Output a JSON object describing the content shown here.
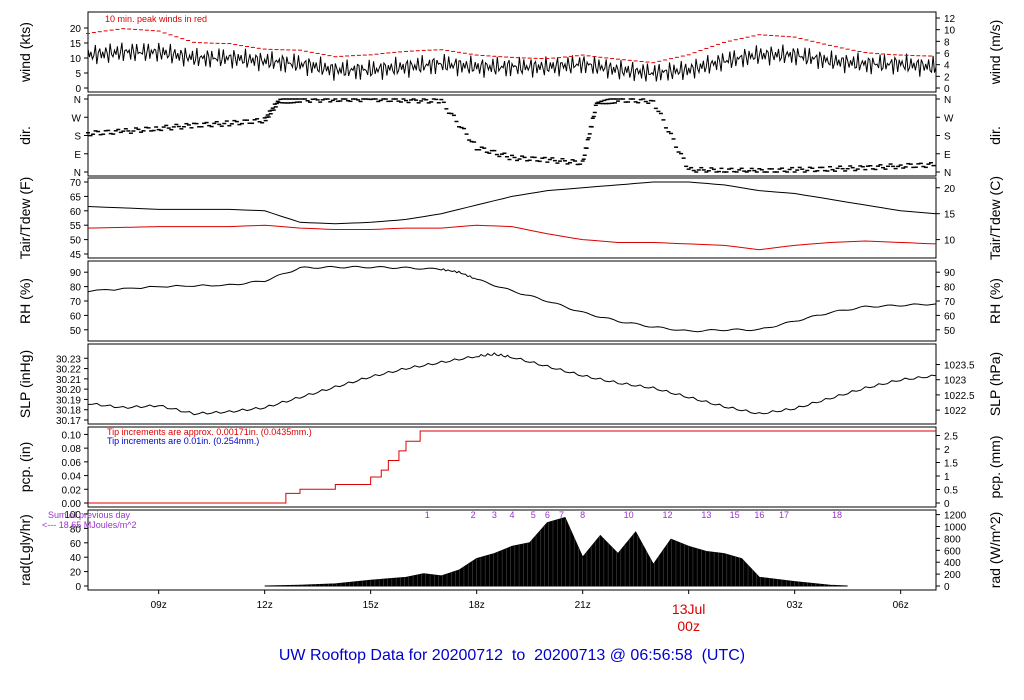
{
  "chart_data": {
    "type": "line",
    "footer_title": "UW Rooftop Data for 20200712  to  20200713 @ 06:56:58  (UTC)",
    "x_axis": {
      "ticks": [
        "09z",
        "12z",
        "15z",
        "18z",
        "21z",
        "03z",
        "06z"
      ],
      "date_label": {
        "day": "13Jul",
        "hour": "00z"
      },
      "range_hours": [
        7.0,
        31.0
      ]
    },
    "panels": [
      {
        "id": "wind",
        "ylabel_left": "wind (kts)",
        "ylabel_right": "wind (m/s)",
        "ylim": [
          0,
          24
        ],
        "left_ticks": [
          0,
          5,
          10,
          15,
          20
        ],
        "right_ticks": [
          "0",
          "2",
          "4",
          "6",
          "8",
          "10",
          "12"
        ],
        "annotation": "10 min. peak winds in red",
        "series": [
          {
            "color": "#000000",
            "x": [
              7,
              8,
              9,
              10,
              11,
              12,
              13,
              14,
              15,
              16,
              17,
              18,
              19,
              20,
              21,
              22,
              23,
              24,
              25,
              26,
              27,
              28,
              29,
              30,
              31
            ],
            "y": [
              11,
              12,
              12,
              10,
              10,
              9,
              8,
              6,
              6,
              7,
              8,
              7,
              7,
              7,
              8,
              6,
              5,
              6,
              9,
              11,
              11,
              9,
              8,
              8,
              7
            ]
          },
          {
            "color": "#dd0000",
            "x": [
              7,
              8,
              9,
              10,
              11,
              12,
              13,
              14,
              15,
              16,
              17,
              18,
              19,
              20,
              21,
              22,
              23,
              24,
              25,
              26,
              27,
              28,
              29,
              30,
              31
            ],
            "y": [
              17,
              19,
              19,
              16,
              16,
              14,
              13,
              10,
              10,
              11,
              12,
              11,
              11,
              11,
              12,
              10,
              8,
              10,
              14,
              17,
              17,
              15,
              13,
              12,
              11
            ]
          }
        ]
      },
      {
        "id": "dir",
        "ylabel_left": "dir.",
        "ylabel_right": "dir.",
        "ylim": [
          0,
          360
        ],
        "left_ticks": [
          "N",
          "E",
          "S",
          "W",
          "N"
        ],
        "right_ticks": [
          "N",
          "E",
          "S",
          "W",
          "N"
        ],
        "series": [
          {
            "color": "#000000",
            "x": [
              7,
              8,
              9,
              10,
              11,
              12,
              12.4,
              13,
              14,
              15,
              16,
              17,
              18,
              19,
              20,
              21,
              21.4,
              22,
              23,
              24,
              25,
              26,
              27,
              28,
              29,
              30,
              31
            ],
            "y": [
              190,
              200,
              215,
              230,
              240,
              255,
              350,
              355,
              358,
              360,
              355,
              350,
              120,
              70,
              60,
              45,
              340,
              355,
              350,
              10,
              8,
              5,
              10,
              15,
              20,
              30,
              35
            ]
          }
        ]
      },
      {
        "id": "temp",
        "ylabel_left": "Tair/Tdew (F)",
        "ylabel_right": "Tair/Tdew (C)",
        "ylim": [
          45,
          70
        ],
        "left_ticks": [
          45,
          50,
          55,
          60,
          65,
          70
        ],
        "right_ticks": [
          "10",
          "15",
          "20"
        ],
        "series": [
          {
            "name": "Tair",
            "color": "#000000",
            "x": [
              7,
              9,
              11,
              12,
              13,
              14,
              15,
              16,
              17,
              18,
              19,
              20,
              21,
              22,
              23,
              24,
              25,
              26,
              27,
              28,
              29,
              30,
              31
            ],
            "y": [
              61.5,
              60.5,
              60.5,
              60,
              56,
              55.5,
              56,
              57,
              59,
              62,
              65,
              67,
              68,
              69,
              70,
              70,
              69,
              67,
              66,
              64,
              62,
              60,
              59
            ]
          },
          {
            "name": "Tdew",
            "color": "#dd0000",
            "x": [
              7,
              9,
              11,
              12,
              13,
              14,
              15,
              16,
              17,
              18,
              19,
              20,
              21,
              22,
              23,
              24,
              25,
              26,
              27,
              28,
              29,
              30,
              31
            ],
            "y": [
              54,
              54.5,
              54.5,
              55,
              54,
              53.5,
              53.5,
              54,
              54,
              55,
              54.5,
              52,
              50,
              49,
              49,
              48.5,
              48,
              46.5,
              48,
              49,
              49.5,
              49,
              48.5
            ]
          }
        ]
      },
      {
        "id": "rh",
        "ylabel_left": "RH (%)",
        "ylabel_right": "RH (%)",
        "ylim": [
          45,
          95
        ],
        "left_ticks": [
          50,
          60,
          70,
          80,
          90
        ],
        "right_ticks": [
          "50",
          "60",
          "70",
          "80",
          "90"
        ],
        "series": [
          {
            "color": "#000000",
            "x": [
              7,
              9,
              11,
              12,
              13,
              14,
              15,
              16,
              17,
              17.5,
              18,
              19,
              20,
              21,
              22,
              23,
              24,
              25,
              26,
              27,
              28,
              29,
              30,
              31
            ],
            "y": [
              77,
              80,
              81,
              84,
              93,
              93.5,
              93.5,
              93,
              92,
              90,
              85,
              77,
              70,
              62,
              56,
              52,
              49,
              50,
              50,
              56,
              62,
              66,
              67,
              68
            ]
          }
        ]
      },
      {
        "id": "slp",
        "ylabel_left": "SLP (inHg)",
        "ylabel_right": "SLP (hPa)",
        "ylim": [
          30.17,
          30.24
        ],
        "left_ticks": [
          "30.17",
          "30.18",
          "30.19",
          "30.20",
          "30.21",
          "30.22",
          "30.23"
        ],
        "right_ticks": [
          "1022",
          "1022.5",
          "1023",
          "1023.5"
        ],
        "series": [
          {
            "color": "#000000",
            "x": [
              7,
              8,
              9,
              10,
              11,
              12,
              13,
              14,
              15,
              16,
              17,
              18,
              18.5,
              19,
              20,
              21,
              22,
              23,
              24,
              25,
              26,
              27,
              28,
              29,
              30,
              31
            ],
            "y": [
              30.186,
              30.182,
              30.184,
              30.176,
              30.178,
              30.182,
              30.192,
              30.202,
              30.212,
              30.22,
              30.226,
              30.232,
              30.234,
              30.231,
              30.222,
              30.213,
              30.206,
              30.201,
              30.192,
              30.183,
              30.176,
              30.181,
              30.191,
              30.201,
              30.209,
              30.213
            ]
          }
        ]
      },
      {
        "id": "pcp",
        "ylabel_left": "pcp. (in)",
        "ylabel_right": "pcp. (mm)",
        "ylim": [
          0,
          0.105
        ],
        "left_ticks": [
          "0.00",
          "0.02",
          "0.04",
          "0.06",
          "0.08",
          "0.10"
        ],
        "right_ticks": [
          "0",
          "0.5",
          "1",
          "1.5",
          "2",
          "2.5"
        ],
        "annotations": [
          {
            "text": "Tip increments are approx. 0.00171in. (0.0435mm.)",
            "color": "#dd0000"
          },
          {
            "text": "Tip increments are 0.01in. (0.254mm.)",
            "color": "#0000cc"
          }
        ],
        "series": [
          {
            "color": "#dd0000",
            "step": true,
            "x": [
              7,
              12.4,
              12.6,
              13,
              14,
              15,
              15.3,
              15.5,
              15.8,
              16,
              16.4,
              31
            ],
            "y": [
              0,
              0,
              0.014,
              0.02,
              0.027,
              0.038,
              0.048,
              0.062,
              0.076,
              0.09,
              0.105,
              0.105
            ]
          }
        ]
      },
      {
        "id": "rad",
        "type": "area",
        "ylabel_left": "rad(Lgly/hr)",
        "ylabel_right": "rad (W/m^2)",
        "ylim": [
          0,
          100
        ],
        "left_ticks": [
          0,
          20,
          40,
          60,
          80,
          100
        ],
        "right_ticks": [
          "0",
          "200",
          "400",
          "600",
          "800",
          "1000",
          "1200"
        ],
        "annotations": [
          {
            "text": "Sum of previous day",
            "color": "#9933cc"
          },
          {
            "text": "<--- 18.65 MJoules/m^2",
            "color": "#9933cc"
          }
        ],
        "hour_labels": [
          "1",
          "2",
          "3",
          "4",
          "5",
          "6",
          "7",
          "8",
          "10",
          "12",
          "13",
          "15",
          "16",
          "17",
          "18"
        ],
        "series": [
          {
            "color": "#000000",
            "x": [
              12,
              13,
              14,
              15,
              16,
              16.5,
              17,
              17.5,
              18,
              18.5,
              19,
              19.5,
              20,
              20.5,
              21,
              21.5,
              22,
              22.5,
              23,
              23.5,
              24,
              24.5,
              25,
              25.5,
              26,
              27,
              28,
              28.5
            ],
            "y": [
              0,
              1,
              3,
              8,
              12,
              17,
              14,
              22,
              38,
              45,
              55,
              60,
              88,
              95,
              40,
              70,
              45,
              75,
              30,
              65,
              55,
              48,
              45,
              38,
              12,
              6,
              1,
              0
            ]
          }
        ]
      }
    ]
  }
}
